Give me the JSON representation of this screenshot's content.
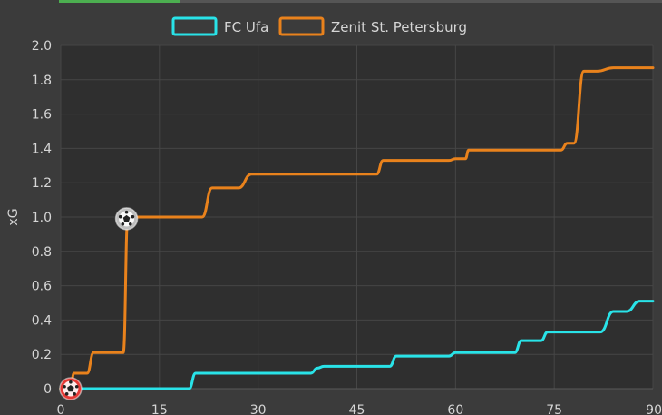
{
  "chart_data": {
    "type": "line",
    "title": "",
    "xlabel": "",
    "ylabel": "xG",
    "xlim": [
      0,
      90
    ],
    "ylim": [
      0,
      2.0
    ],
    "x_ticks": [
      "0",
      "15",
      "30",
      "45",
      "60",
      "75",
      "90"
    ],
    "y_ticks": [
      "0",
      "0.2",
      "0.4",
      "0.6",
      "0.8",
      "1.0",
      "1.2",
      "1.4",
      "1.6",
      "1.8",
      "2.0"
    ],
    "grid": true,
    "legend_position": "top-center",
    "series": [
      {
        "name": "FC Ufa",
        "color": "#29e3e8",
        "points": [
          [
            0,
            0
          ],
          [
            19.5,
            0
          ],
          [
            20.5,
            0.09
          ],
          [
            38,
            0.09
          ],
          [
            39,
            0.12
          ],
          [
            40,
            0.13
          ],
          [
            50,
            0.13
          ],
          [
            51,
            0.19
          ],
          [
            59,
            0.19
          ],
          [
            60,
            0.21
          ],
          [
            69,
            0.21
          ],
          [
            70,
            0.28
          ],
          [
            73,
            0.28
          ],
          [
            74,
            0.33
          ],
          [
            82,
            0.33
          ],
          [
            84,
            0.45
          ],
          [
            86,
            0.45
          ],
          [
            88,
            0.51
          ],
          [
            90,
            0.51
          ]
        ]
      },
      {
        "name": "Zenit St. Petersburg",
        "color": "#e9821c",
        "points": [
          [
            0,
            0
          ],
          [
            1.5,
            0
          ],
          [
            2,
            0.09
          ],
          [
            4,
            0.09
          ],
          [
            5,
            0.21
          ],
          [
            9.5,
            0.21
          ],
          [
            10.2,
            1.0
          ],
          [
            21.5,
            1.0
          ],
          [
            23,
            1.17
          ],
          [
            27,
            1.17
          ],
          [
            29,
            1.25
          ],
          [
            48,
            1.25
          ],
          [
            49,
            1.33
          ],
          [
            59,
            1.33
          ],
          [
            60,
            1.34
          ],
          [
            61.5,
            1.34
          ],
          [
            62,
            1.39
          ],
          [
            76,
            1.39
          ],
          [
            77,
            1.43
          ],
          [
            78,
            1.43
          ],
          [
            79.5,
            1.85
          ],
          [
            81.5,
            1.85
          ],
          [
            84,
            1.87
          ],
          [
            90,
            1.87
          ]
        ]
      }
    ],
    "events": [
      {
        "minute": 1.5,
        "xg": 0,
        "team": "FC Ufa",
        "kind": "goal",
        "icon": "ball-icon",
        "color": "#e53935"
      },
      {
        "minute": 10,
        "xg": 0.99,
        "team": "Zenit St. Petersburg",
        "kind": "goal",
        "icon": "ball-icon",
        "color": "#bdbdbd"
      }
    ]
  }
}
